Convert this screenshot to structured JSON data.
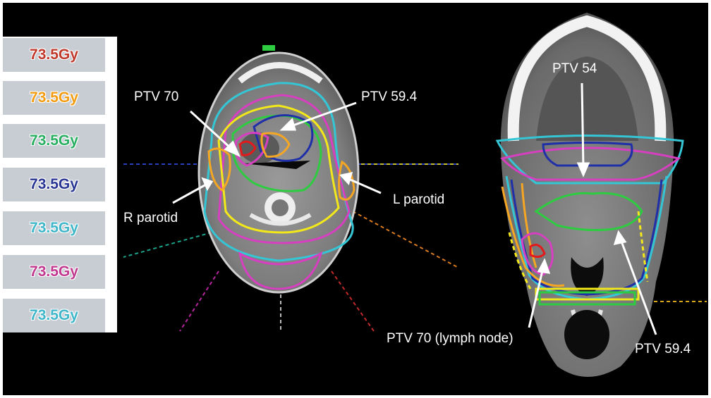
{
  "legend": {
    "items": [
      {
        "label": "73.5Gy",
        "color": "#c0392b"
      },
      {
        "label": "73.5Gy",
        "color": "#f39c12"
      },
      {
        "label": "73.5Gy",
        "color": "#27ae60"
      },
      {
        "label": "73.5Gy",
        "color": "#283593"
      },
      {
        "label": "73.5Gy",
        "color": "#3fb6c9"
      },
      {
        "label": "73.5Gy",
        "color": "#c2388f"
      },
      {
        "label": "73.5Gy",
        "color": "#3fb6c9"
      }
    ]
  },
  "annotations": {
    "ptv70": "PTV 70",
    "ptv594_axial": "PTV 59.4",
    "r_parotid": "R parotid",
    "l_parotid": "L parotid",
    "ptv54": "PTV 54",
    "ptv70_ln": "PTV 70 (lymph node)",
    "ptv594_coronal": "PTV 59.4"
  },
  "colors": {
    "background": "#000000",
    "legend_box": "#c8ccd3",
    "contour_red": "#e31a1c",
    "contour_orange": "#f5a623",
    "contour_green": "#2ecc40",
    "contour_blue": "#1f2fa8",
    "contour_cyan": "#35c6d6",
    "contour_magenta": "#d63fbf",
    "contour_yellow": "#f2e81a"
  }
}
